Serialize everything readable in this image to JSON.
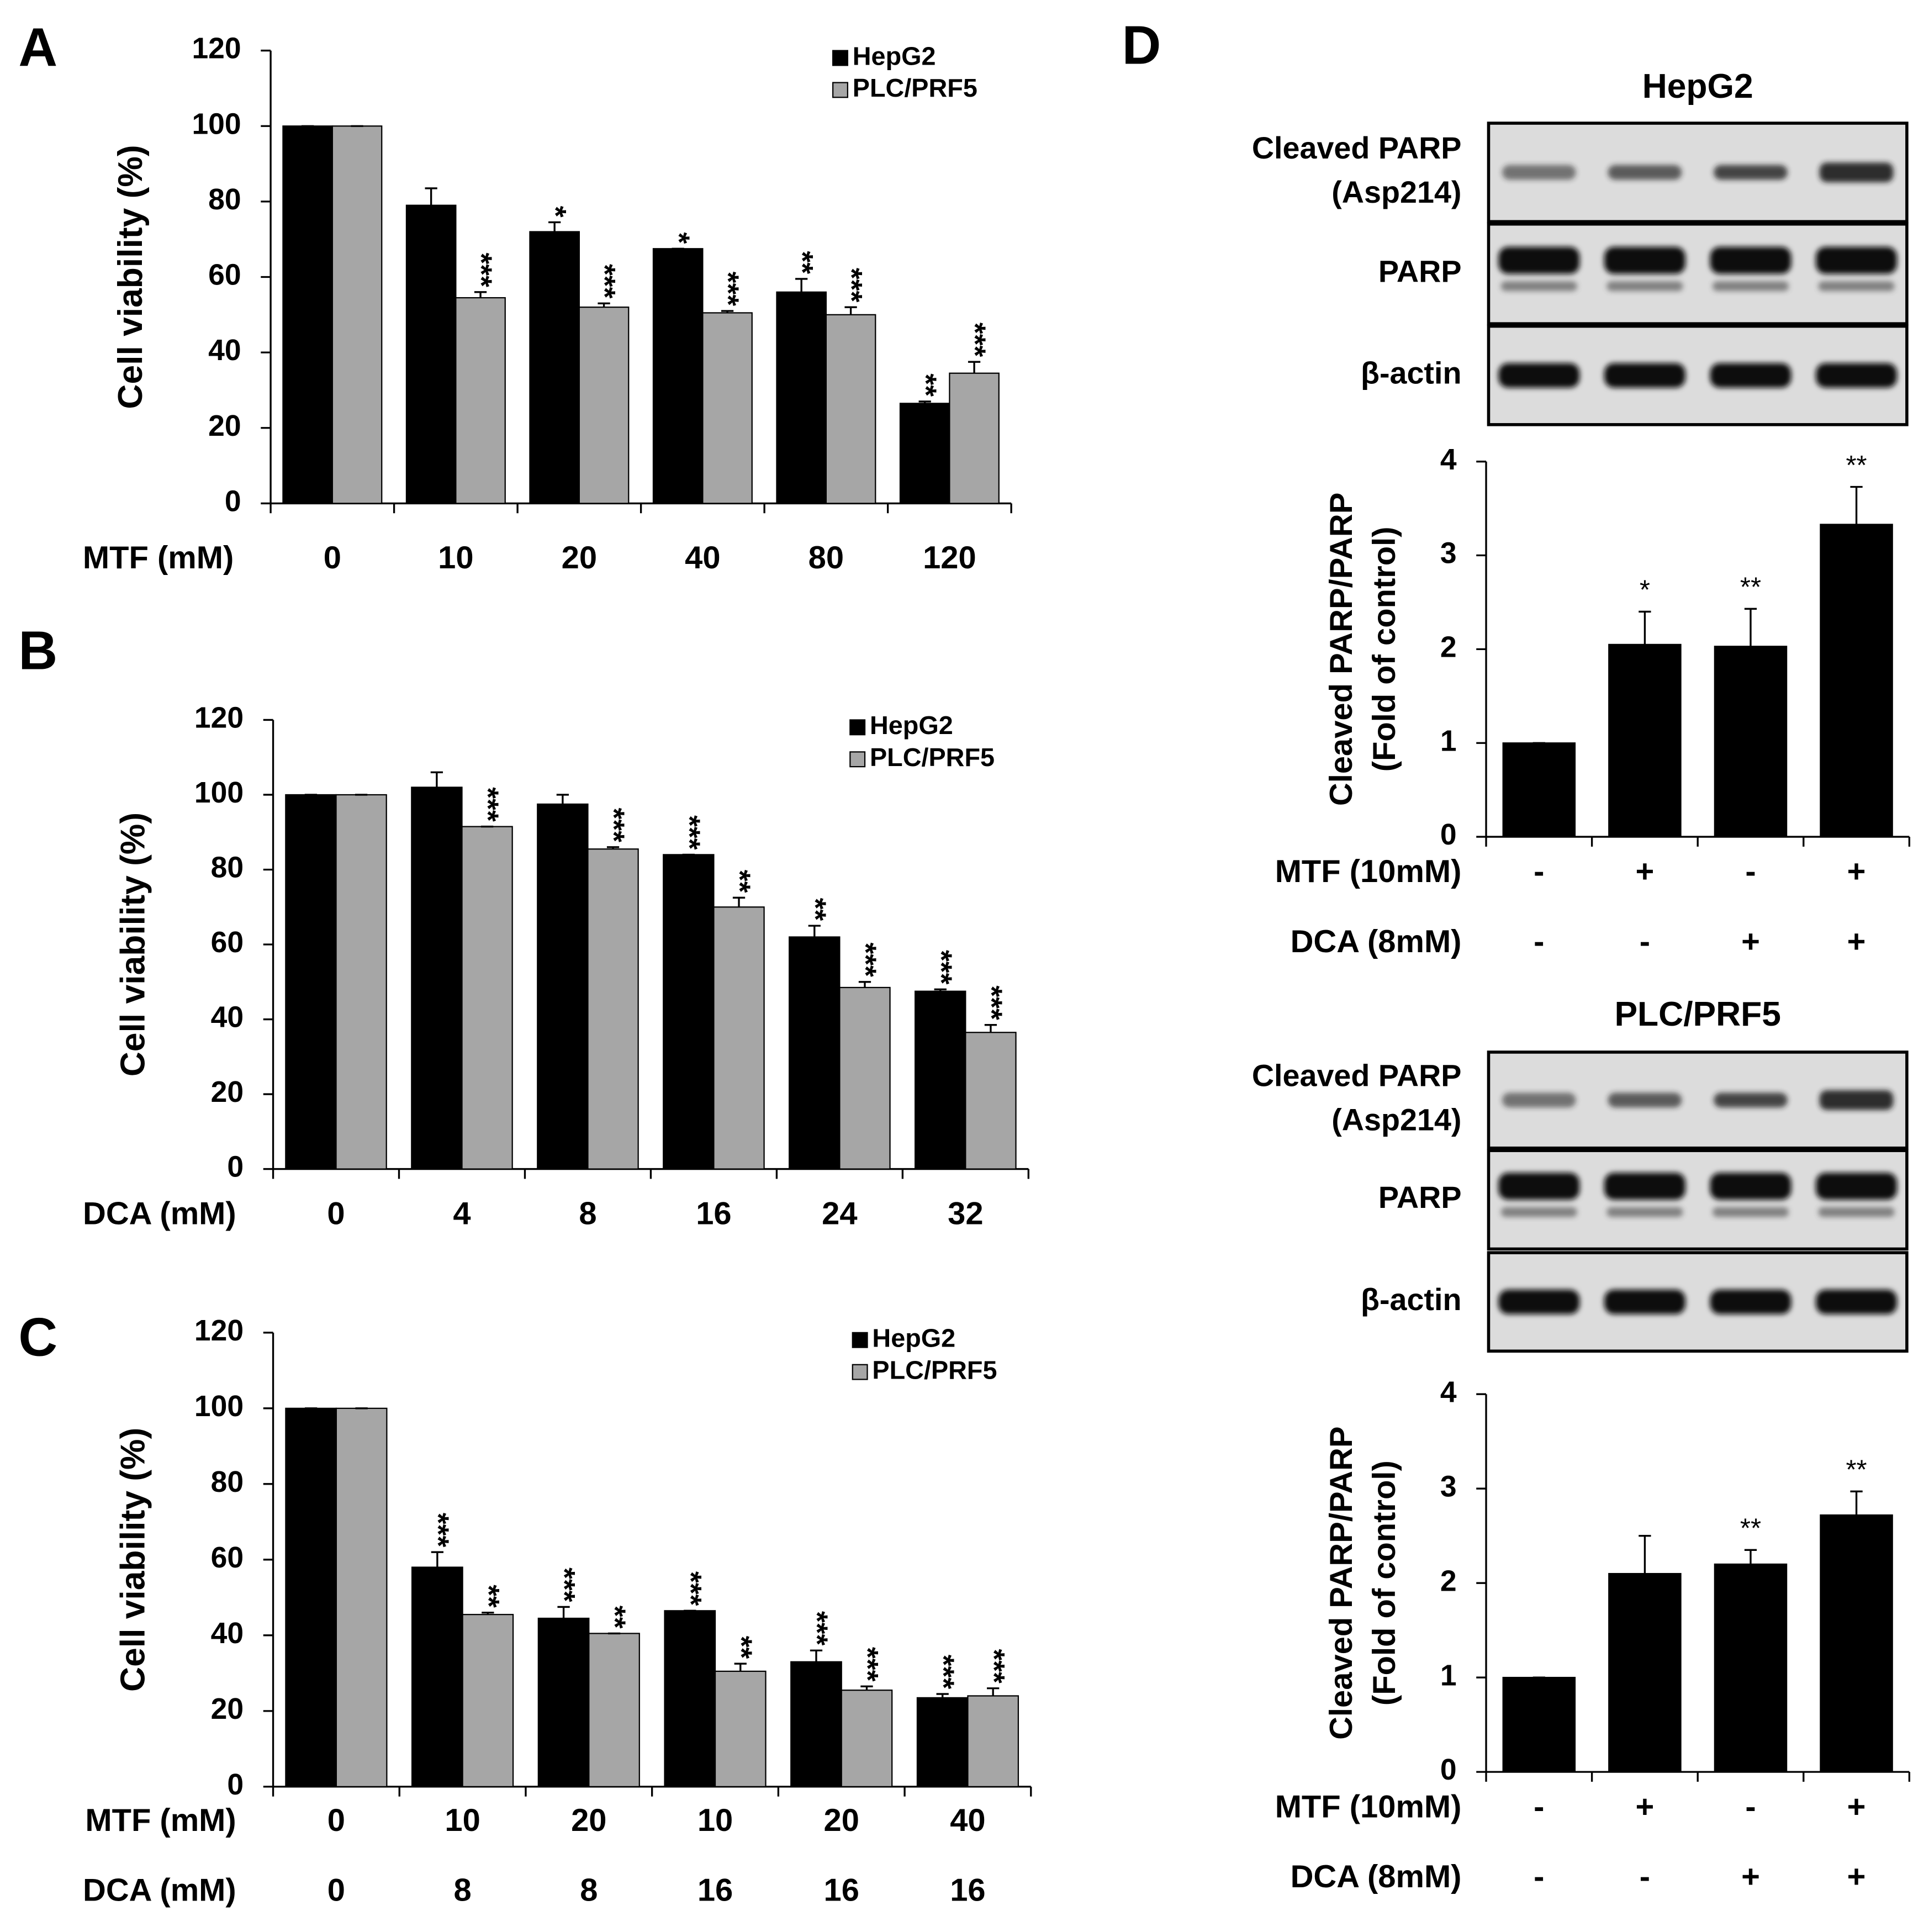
{
  "chart_data": [
    {
      "panel": "A",
      "type": "bar",
      "ylabel": "Cell viability (%)",
      "category_rows": [
        {
          "label": "MTF (mM)",
          "values": [
            "0",
            "10",
            "20",
            "40",
            "80",
            "120"
          ]
        }
      ],
      "series": [
        {
          "name": "HepG2",
          "color": "#000000",
          "values": [
            100,
            79,
            72,
            67.5,
            56,
            26.5
          ],
          "errors": [
            0,
            4.5,
            2.5,
            0,
            3.5,
            0.5
          ],
          "significance": [
            null,
            null,
            "*",
            "*",
            "**",
            "**"
          ]
        },
        {
          "name": "PLC/PRF5",
          "color": "#a6a6a6",
          "values": [
            100,
            54.5,
            52,
            50.5,
            50,
            34.5
          ],
          "errors": [
            0,
            1.5,
            1,
            0.5,
            2,
            3
          ],
          "significance": [
            null,
            "***",
            "***",
            "***",
            "***",
            "***"
          ]
        }
      ],
      "ylim": [
        0,
        120
      ],
      "yticks": [
        0,
        20,
        40,
        60,
        80,
        100,
        120
      ],
      "legend": "top-right",
      "significance_orientation": "vertical"
    },
    {
      "panel": "B",
      "type": "bar",
      "ylabel": "Cell viability (%)",
      "category_rows": [
        {
          "label": "DCA (mM)",
          "values": [
            "0",
            "4",
            "8",
            "16",
            "24",
            "32"
          ]
        }
      ],
      "series": [
        {
          "name": "HepG2",
          "color": "#000000",
          "values": [
            100,
            102,
            97.5,
            84,
            62,
            47.5
          ],
          "errors": [
            0,
            4,
            2.5,
            0,
            3,
            0.5
          ],
          "significance": [
            null,
            null,
            null,
            "***",
            "**",
            "***"
          ]
        },
        {
          "name": "PLC/PRF5",
          "color": "#a6a6a6",
          "values": [
            100,
            91.5,
            85.5,
            70,
            48.5,
            36.5
          ],
          "errors": [
            0,
            0,
            0.5,
            2.5,
            1.5,
            2
          ],
          "significance": [
            null,
            "***",
            "***",
            "**",
            "***",
            "***"
          ]
        }
      ],
      "ylim": [
        0,
        120
      ],
      "yticks": [
        0,
        20,
        40,
        60,
        80,
        100,
        120
      ],
      "legend": "top-right",
      "significance_orientation": "vertical"
    },
    {
      "panel": "C",
      "type": "bar",
      "ylabel": "Cell viability (%)",
      "category_rows": [
        {
          "label": "MTF (mM)",
          "values": [
            "0",
            "10",
            "20",
            "10",
            "20",
            "40"
          ]
        },
        {
          "label": "DCA (mM)",
          "values": [
            "0",
            "8",
            "8",
            "16",
            "16",
            "16"
          ]
        }
      ],
      "series": [
        {
          "name": "HepG2",
          "color": "#000000",
          "values": [
            100,
            58,
            44.5,
            46.5,
            33,
            23.5
          ],
          "errors": [
            0,
            4,
            3,
            0,
            3,
            1
          ],
          "significance": [
            null,
            "***",
            "***",
            "***",
            "***",
            "***"
          ]
        },
        {
          "name": "PLC/PRF5",
          "color": "#a6a6a6",
          "values": [
            100,
            45.5,
            40.5,
            30.5,
            25.5,
            24
          ],
          "errors": [
            0,
            0.5,
            0,
            2,
            1,
            2
          ],
          "significance": [
            null,
            "**",
            "**",
            "**",
            "***",
            "***"
          ]
        }
      ],
      "ylim": [
        0,
        120
      ],
      "yticks": [
        0,
        20,
        40,
        60,
        80,
        100,
        120
      ],
      "legend": "top-right",
      "significance_orientation": "vertical"
    },
    {
      "panel": "D",
      "type": "bar",
      "title": "HepG2",
      "blot_labels": [
        [
          "Cleaved PARP",
          "(Asp214)"
        ],
        [
          "PARP"
        ],
        [
          "β-actin"
        ]
      ],
      "ylabel": [
        "Cleaved PARP/PARP",
        "(Fold of control)"
      ],
      "category_rows": [
        {
          "label": "MTF (10mM)",
          "values": [
            "-",
            "+",
            "-",
            "+"
          ]
        },
        {
          "label": "DCA (8mM)",
          "values": [
            "-",
            "-",
            "+",
            "+"
          ]
        }
      ],
      "series": [
        {
          "color": "#000000",
          "values": [
            1,
            2.05,
            2.03,
            3.33
          ],
          "errors": [
            0,
            0.35,
            0.4,
            0.4
          ],
          "significance": [
            null,
            "*",
            "**",
            "**"
          ]
        }
      ],
      "ylim": [
        0,
        4
      ],
      "yticks": [
        0,
        1,
        2,
        3,
        4
      ],
      "significance_orientation": "horizontal"
    },
    {
      "type": "bar",
      "title": "PLC/PRF5",
      "blot_labels": [
        [
          "Cleaved PARP",
          "(Asp214)"
        ],
        [
          "PARP"
        ],
        [
          "β-actin"
        ]
      ],
      "ylabel": [
        "Cleaved PARP/PARP",
        "(Fold of control)"
      ],
      "category_rows": [
        {
          "label": "MTF (10mM)",
          "values": [
            "-",
            "+",
            "-",
            "+"
          ]
        },
        {
          "label": "DCA (8mM)",
          "values": [
            "-",
            "-",
            "+",
            "+"
          ]
        }
      ],
      "series": [
        {
          "color": "#000000",
          "values": [
            1,
            2.1,
            2.2,
            2.72
          ],
          "errors": [
            0,
            0.4,
            0.15,
            0.25
          ],
          "significance": [
            null,
            null,
            "**",
            "**"
          ]
        }
      ],
      "ylim": [
        0,
        4
      ],
      "yticks": [
        0,
        1,
        2,
        3,
        4
      ],
      "significance_orientation": "horizontal"
    }
  ]
}
